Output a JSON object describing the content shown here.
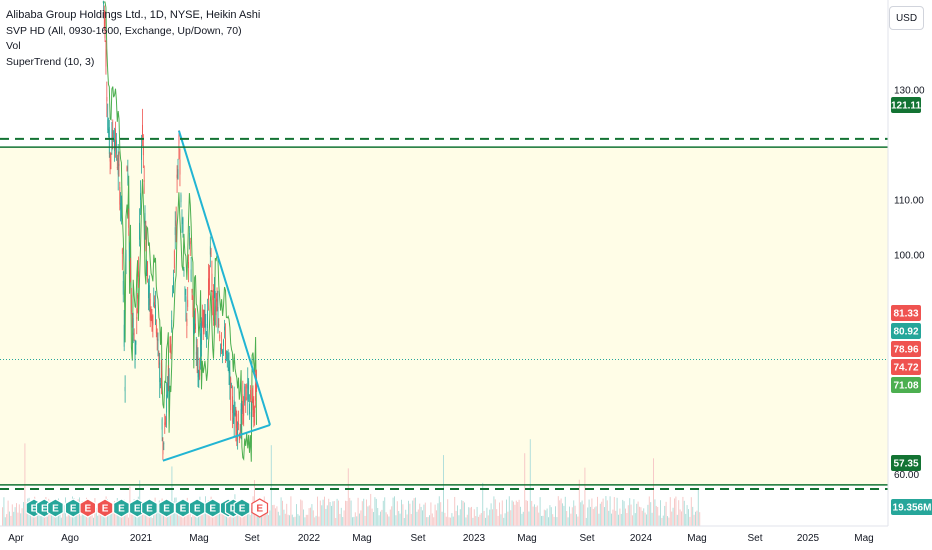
{
  "legend": {
    "title": "Alibaba Group Holdings Ltd., 1D, NYSE, Heikin Ashi",
    "indicator_svp": "SVP HD (All, 0930-1600, Exchange, Up/Down, 70)",
    "indicator_vol": "Vol",
    "indicator_supertrend": "SuperTrend (10, 3)"
  },
  "currency_button": "USD",
  "colors": {
    "up": "#26a69a",
    "down": "#ef5350",
    "trendline": "#22b5d3",
    "level_line": "#137333",
    "zone_fill": "#fffde7",
    "supertrend_up": "#4caf50",
    "supertrend_down": "#ef5350",
    "event_badge": "#26a69a",
    "event_badge_red": "#ef5350"
  },
  "chart_data": {
    "type": "candlestick",
    "price_axis": {
      "min": 50.6,
      "max": 146.4,
      "ticks": [
        "130.00",
        "110.00",
        "100.00",
        "90.00",
        "60.00"
      ]
    },
    "time_axis": {
      "labels": [
        "Apr",
        "Ago",
        "2021",
        "Mag",
        "Set",
        "2022",
        "Mag",
        "Set",
        "2023",
        "Mag",
        "Set",
        "2024",
        "Mag",
        "Set",
        "2025",
        "Mag"
      ]
    },
    "price_badges": [
      {
        "label": "121.11",
        "price": 121.11,
        "color": "#137333"
      },
      {
        "label": "81.33",
        "price": 81.33,
        "color": "#ef5350"
      },
      {
        "label": "80.92",
        "price": 80.92,
        "color": "#26a69a"
      },
      {
        "label": "78.96",
        "price": 78.96,
        "color": "#ef5350"
      },
      {
        "label": "74.72",
        "price": 74.72,
        "color": "#ef5350"
      },
      {
        "label": "71.08",
        "price": 71.08,
        "color": "#4caf50"
      },
      {
        "label": "57.35",
        "price": 57.35,
        "color": "#137333"
      },
      {
        "label": "19.356M",
        "price": null,
        "color": "#26a69a"
      }
    ],
    "horizontal_levels": [
      {
        "price": 121.11,
        "style": "dashed"
      },
      {
        "price": 119.6,
        "style": "solid"
      },
      {
        "price": 58.1,
        "style": "solid"
      },
      {
        "price": 57.35,
        "style": "dashed"
      }
    ],
    "zone": {
      "top": 119.6,
      "bottom": 58.1
    },
    "trendlines": [
      {
        "from": {
          "date": "2023-01-27",
          "price": 122.6
        },
        "to": {
          "date": "2024-07-20",
          "price": 69.0
        }
      },
      {
        "from": {
          "date": "2022-10-24",
          "price": 62.5
        },
        "to": {
          "date": "2024-07-20",
          "price": 69.0
        }
      }
    ],
    "price_path": [
      [
        "2021-11-01",
        148
      ],
      [
        "2021-11-15",
        142
      ],
      [
        "2021-12-01",
        125
      ],
      [
        "2021-12-15",
        118
      ],
      [
        "2022-01-05",
        123
      ],
      [
        "2022-02-01",
        116
      ],
      [
        "2022-02-20",
        108
      ],
      [
        "2022-03-14",
        78
      ],
      [
        "2022-03-25",
        118
      ],
      [
        "2022-04-20",
        92
      ],
      [
        "2022-05-12",
        82
      ],
      [
        "2022-06-01",
        96
      ],
      [
        "2022-06-25",
        124
      ],
      [
        "2022-07-20",
        98
      ],
      [
        "2022-08-15",
        88
      ],
      [
        "2022-09-05",
        92
      ],
      [
        "2022-09-25",
        82
      ],
      [
        "2022-10-15",
        76
      ],
      [
        "2022-10-24",
        63
      ],
      [
        "2022-11-15",
        72
      ],
      [
        "2022-12-10",
        84
      ],
      [
        "2023-01-05",
        104
      ],
      [
        "2023-01-27",
        121
      ],
      [
        "2023-02-20",
        104
      ],
      [
        "2023-03-15",
        86
      ],
      [
        "2023-03-30",
        104
      ],
      [
        "2023-04-25",
        88
      ],
      [
        "2023-05-25",
        78
      ],
      [
        "2023-06-20",
        90
      ],
      [
        "2023-07-10",
        86
      ],
      [
        "2023-08-01",
        100
      ],
      [
        "2023-08-20",
        91
      ],
      [
        "2023-09-10",
        90
      ],
      [
        "2023-10-01",
        85
      ],
      [
        "2023-10-30",
        84
      ],
      [
        "2023-11-20",
        78
      ],
      [
        "2023-12-05",
        73
      ],
      [
        "2024-01-05",
        70
      ],
      [
        "2024-01-25",
        68
      ],
      [
        "2024-02-15",
        73
      ],
      [
        "2024-03-10",
        75
      ],
      [
        "2024-04-05",
        72
      ],
      [
        "2024-04-20",
        71
      ],
      [
        "2024-05-01",
        77
      ],
      [
        "2024-05-07",
        82
      ]
    ],
    "event_markers": [
      {
        "date": "2020-09-20",
        "letter": "E"
      },
      {
        "date": "2020-11-20",
        "letter": "E"
      },
      {
        "date": "2021-01-25",
        "letter": "E"
      },
      {
        "date": "2021-05-10",
        "letter": "E"
      },
      {
        "date": "2021-08-05",
        "letter": "E",
        "color": "red"
      },
      {
        "date": "2021-11-15",
        "letter": "E",
        "color": "red"
      },
      {
        "date": "2022-02-20",
        "letter": "E"
      },
      {
        "date": "2022-05-25",
        "letter": "E"
      },
      {
        "date": "2022-08-05",
        "letter": "E"
      },
      {
        "date": "2022-11-15",
        "letter": "E"
      },
      {
        "date": "2023-02-20",
        "letter": "E"
      },
      {
        "date": "2023-05-15",
        "letter": "E"
      },
      {
        "date": "2023-08-15",
        "letter": "E"
      },
      {
        "date": "2023-11-15",
        "letter": "E"
      },
      {
        "date": "2023-12-15",
        "letter": "D"
      },
      {
        "date": "2024-02-05",
        "letter": "E"
      },
      {
        "date": "2024-05-20",
        "letter": "E",
        "color": "outline"
      }
    ]
  }
}
